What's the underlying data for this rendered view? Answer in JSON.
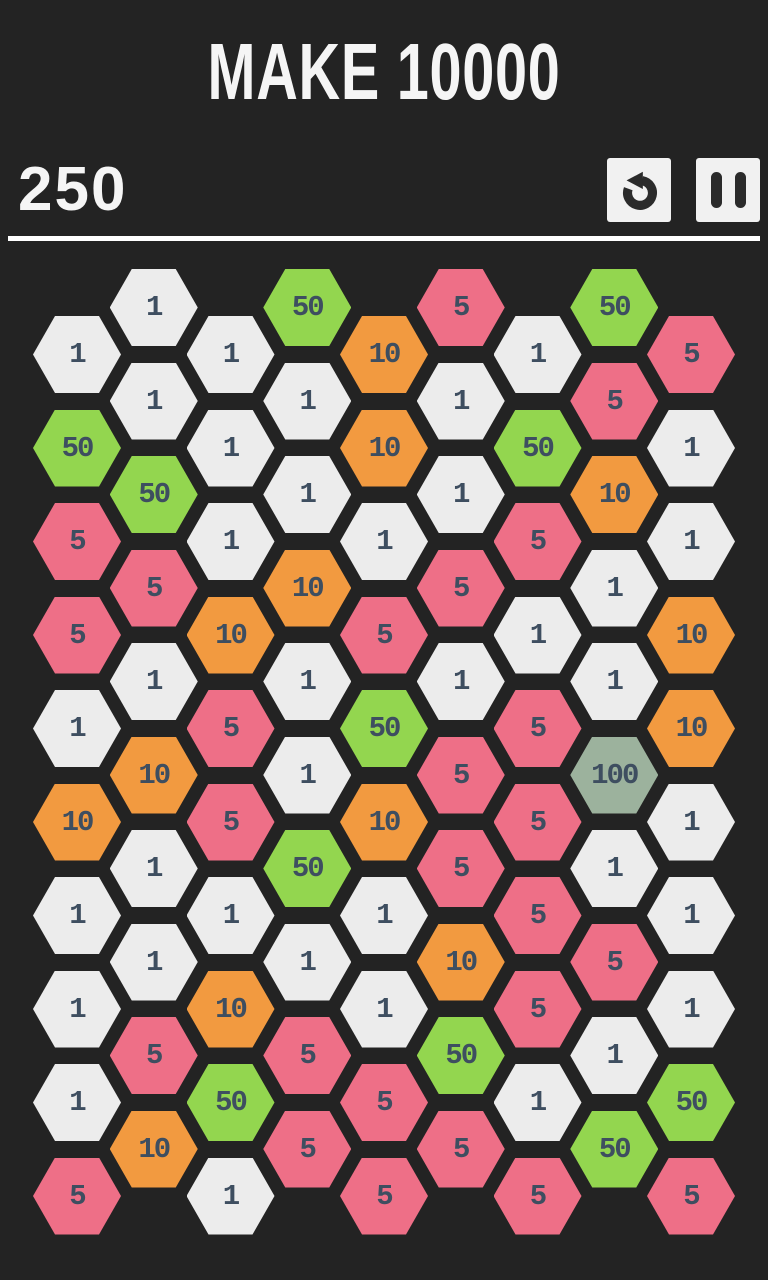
{
  "header": {
    "title": "MAKE 10000",
    "score": "250"
  },
  "controls": {
    "undo": "undo",
    "pause": "pause"
  },
  "palette": {
    "background": "#232323",
    "text_light": "#f5f5f5",
    "divider": "#ffffff",
    "button_bg": "#f1f1f1",
    "icon_dark": "#2b2b2b",
    "tile_text": "#3e4e60",
    "tile_colors": {
      "1": "#ececec",
      "5": "#ee6f87",
      "10": "#f29a40",
      "50": "#93d64f",
      "100": "#9cb29d"
    }
  },
  "grid": {
    "columns": [
      [
        1,
        50,
        5,
        5,
        1,
        10,
        1,
        1,
        1,
        5
      ],
      [
        1,
        1,
        50,
        5,
        1,
        10,
        1,
        1,
        5,
        10
      ],
      [
        1,
        1,
        1,
        10,
        5,
        5,
        1,
        10,
        50,
        1
      ],
      [
        50,
        1,
        1,
        10,
        1,
        1,
        50,
        1,
        5,
        5
      ],
      [
        10,
        10,
        1,
        5,
        50,
        10,
        1,
        1,
        5,
        5
      ],
      [
        5,
        1,
        1,
        5,
        1,
        5,
        5,
        10,
        50,
        5
      ],
      [
        1,
        50,
        5,
        1,
        5,
        5,
        5,
        5,
        1,
        5
      ],
      [
        50,
        5,
        10,
        1,
        1,
        100,
        1,
        5,
        1,
        50
      ],
      [
        5,
        1,
        1,
        10,
        10,
        1,
        1,
        1,
        50,
        5
      ]
    ]
  }
}
